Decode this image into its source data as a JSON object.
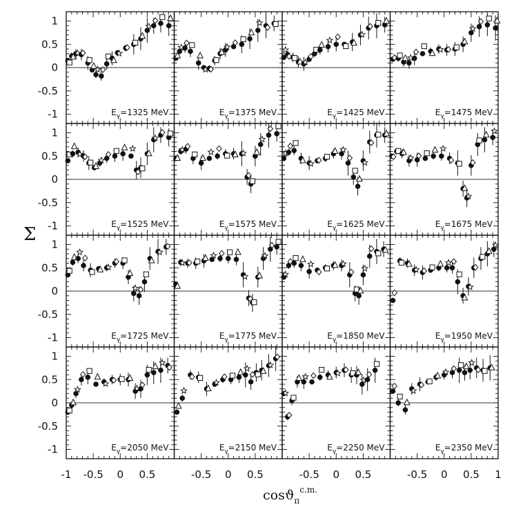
{
  "chart_data": {
    "type": "scatter",
    "ylabel": "Σ",
    "xlabel": "cosϑ",
    "xlabel_sub": "π",
    "xlabel_sup": "c.m.",
    "xlim": [
      -1,
      1
    ],
    "ylim": [
      -1.2,
      1.2
    ],
    "x_ticks": [
      "-1",
      "-0.5",
      "0",
      "0.5",
      "1"
    ],
    "y_ticks": [
      "1",
      "0.5",
      "0",
      "-0.5",
      "-1"
    ],
    "grid": false,
    "layout": "4x4 panel grid",
    "marker_styles": [
      "filled circle",
      "open square",
      "open triangle",
      "open star",
      "open diamond"
    ],
    "panels": [
      {
        "label": "E",
        "label_sub": "γ",
        "energy": "=1325 MeV",
        "points": [
          [
            -0.97,
            0.15
          ],
          [
            -0.9,
            0.25
          ],
          [
            -0.82,
            0.3
          ],
          [
            -0.72,
            0.28
          ],
          [
            -0.6,
            0.1
          ],
          [
            -0.52,
            -0.05
          ],
          [
            -0.45,
            -0.15
          ],
          [
            -0.35,
            -0.18
          ],
          [
            -0.25,
            0.08
          ],
          [
            -0.15,
            0.2
          ],
          [
            -0.05,
            0.32
          ],
          [
            0.1,
            0.42
          ],
          [
            0.25,
            0.5
          ],
          [
            0.38,
            0.62
          ],
          [
            0.5,
            0.8
          ],
          [
            0.62,
            0.9
          ],
          [
            0.75,
            0.95
          ],
          [
            0.9,
            0.9
          ]
        ]
      },
      {
        "label": "E",
        "label_sub": "γ",
        "energy": "=1375 MeV",
        "points": [
          [
            -0.97,
            0.2
          ],
          [
            -0.9,
            0.35
          ],
          [
            -0.8,
            0.42
          ],
          [
            -0.7,
            0.35
          ],
          [
            -0.55,
            0.1
          ],
          [
            -0.45,
            0.0
          ],
          [
            -0.35,
            -0.02
          ],
          [
            -0.25,
            0.15
          ],
          [
            -0.15,
            0.3
          ],
          [
            -0.05,
            0.38
          ],
          [
            0.1,
            0.45
          ],
          [
            0.25,
            0.5
          ],
          [
            0.4,
            0.62
          ],
          [
            0.55,
            0.8
          ],
          [
            0.7,
            0.9
          ],
          [
            0.85,
            0.95
          ]
        ]
      },
      {
        "label": "E",
        "label_sub": "γ",
        "energy": "=1425 MeV",
        "points": [
          [
            -0.97,
            0.22
          ],
          [
            -0.9,
            0.28
          ],
          [
            -0.8,
            0.22
          ],
          [
            -0.7,
            0.12
          ],
          [
            -0.6,
            0.08
          ],
          [
            -0.5,
            0.18
          ],
          [
            -0.4,
            0.3
          ],
          [
            -0.3,
            0.38
          ],
          [
            -0.15,
            0.45
          ],
          [
            0.0,
            0.5
          ],
          [
            0.15,
            0.5
          ],
          [
            0.3,
            0.55
          ],
          [
            0.45,
            0.7
          ],
          [
            0.6,
            0.85
          ],
          [
            0.75,
            0.9
          ],
          [
            0.9,
            0.92
          ]
        ]
      },
      {
        "label": "E",
        "label_sub": "γ",
        "energy": "=1475 MeV",
        "points": [
          [
            -0.95,
            0.18
          ],
          [
            -0.85,
            0.2
          ],
          [
            -0.75,
            0.12
          ],
          [
            -0.65,
            0.1
          ],
          [
            -0.55,
            0.2
          ],
          [
            -0.4,
            0.3
          ],
          [
            -0.25,
            0.35
          ],
          [
            -0.1,
            0.4
          ],
          [
            0.05,
            0.38
          ],
          [
            0.2,
            0.4
          ],
          [
            0.35,
            0.5
          ],
          [
            0.5,
            0.75
          ],
          [
            0.65,
            0.88
          ],
          [
            0.8,
            0.92
          ],
          [
            0.95,
            0.85
          ]
        ]
      },
      {
        "label": "E",
        "label_sub": "γ",
        "energy": "=1525 MeV",
        "points": [
          [
            -0.97,
            0.4
          ],
          [
            -0.88,
            0.55
          ],
          [
            -0.78,
            0.58
          ],
          [
            -0.68,
            0.5
          ],
          [
            -0.58,
            0.35
          ],
          [
            -0.48,
            0.25
          ],
          [
            -0.38,
            0.35
          ],
          [
            -0.25,
            0.45
          ],
          [
            -0.1,
            0.5
          ],
          [
            0.05,
            0.55
          ],
          [
            0.2,
            0.5
          ],
          [
            0.3,
            0.2
          ],
          [
            0.38,
            0.25
          ],
          [
            0.5,
            0.55
          ],
          [
            0.62,
            0.85
          ],
          [
            0.75,
            0.95
          ],
          [
            0.9,
            0.9
          ]
        ]
      },
      {
        "label": "E",
        "label_sub": "γ",
        "energy": "=1575 MeV",
        "points": [
          [
            -0.97,
            0.45
          ],
          [
            -0.88,
            0.6
          ],
          [
            -0.78,
            0.65
          ],
          [
            -0.65,
            0.45
          ],
          [
            -0.5,
            0.35
          ],
          [
            -0.35,
            0.45
          ],
          [
            -0.2,
            0.5
          ],
          [
            -0.05,
            0.55
          ],
          [
            0.1,
            0.55
          ],
          [
            0.25,
            0.55
          ],
          [
            0.35,
            0.05
          ],
          [
            0.42,
            -0.1
          ],
          [
            0.5,
            0.5
          ],
          [
            0.6,
            0.75
          ],
          [
            0.75,
            0.95
          ],
          [
            0.9,
            0.98
          ]
        ]
      },
      {
        "label": "E",
        "label_sub": "γ",
        "energy": "=1625 MeV",
        "points": [
          [
            -0.97,
            0.45
          ],
          [
            -0.88,
            0.58
          ],
          [
            -0.78,
            0.62
          ],
          [
            -0.65,
            0.45
          ],
          [
            -0.5,
            0.35
          ],
          [
            -0.35,
            0.4
          ],
          [
            -0.2,
            0.45
          ],
          [
            -0.05,
            0.55
          ],
          [
            0.1,
            0.55
          ],
          [
            0.22,
            0.35
          ],
          [
            0.32,
            0.05
          ],
          [
            0.4,
            -0.15
          ],
          [
            0.5,
            0.4
          ],
          [
            0.62,
            0.8
          ],
          [
            0.75,
            0.95
          ],
          [
            0.9,
            0.95
          ]
        ]
      },
      {
        "label": "E",
        "label_sub": "γ",
        "energy": "=1675 MeV",
        "points": [
          [
            -0.97,
            0.5
          ],
          [
            -0.88,
            0.6
          ],
          [
            -0.78,
            0.55
          ],
          [
            -0.65,
            0.4
          ],
          [
            -0.5,
            0.42
          ],
          [
            -0.35,
            0.45
          ],
          [
            -0.2,
            0.5
          ],
          [
            -0.05,
            0.5
          ],
          [
            0.1,
            0.45
          ],
          [
            0.25,
            0.35
          ],
          [
            0.35,
            -0.2
          ],
          [
            0.42,
            -0.4
          ],
          [
            0.5,
            0.3
          ],
          [
            0.62,
            0.75
          ],
          [
            0.75,
            0.85
          ],
          [
            0.9,
            0.9
          ]
        ]
      },
      {
        "label": "E",
        "label_sub": "γ",
        "energy": "=1725 MeV",
        "points": [
          [
            -0.97,
            0.35
          ],
          [
            -0.88,
            0.62
          ],
          [
            -0.78,
            0.7
          ],
          [
            -0.68,
            0.55
          ],
          [
            -0.55,
            0.45
          ],
          [
            -0.4,
            0.48
          ],
          [
            -0.25,
            0.5
          ],
          [
            -0.1,
            0.6
          ],
          [
            0.05,
            0.6
          ],
          [
            0.15,
            0.3
          ],
          [
            0.25,
            -0.05
          ],
          [
            0.35,
            -0.1
          ],
          [
            0.45,
            0.2
          ],
          [
            0.55,
            0.7
          ],
          [
            0.7,
            0.85
          ],
          [
            0.85,
            0.95
          ]
        ]
      },
      {
        "label": "E",
        "label_sub": "γ",
        "energy": "=1775 MeV",
        "points": [
          [
            -0.97,
            0.15
          ],
          [
            -0.88,
            0.62
          ],
          [
            -0.75,
            0.6
          ],
          [
            -0.6,
            0.6
          ],
          [
            -0.45,
            0.65
          ],
          [
            -0.3,
            0.68
          ],
          [
            -0.15,
            0.7
          ],
          [
            0.0,
            0.7
          ],
          [
            0.15,
            0.68
          ],
          [
            0.28,
            0.35
          ],
          [
            0.38,
            -0.15
          ],
          [
            0.45,
            -0.25
          ],
          [
            0.55,
            0.3
          ],
          [
            0.65,
            0.7
          ],
          [
            0.78,
            0.9
          ],
          [
            0.9,
            0.95
          ]
        ]
      },
      {
        "label": "E",
        "label_sub": "γ",
        "energy": "=1850 MeV",
        "points": [
          [
            -0.97,
            0.3
          ],
          [
            -0.88,
            0.55
          ],
          [
            -0.78,
            0.6
          ],
          [
            -0.65,
            0.55
          ],
          [
            -0.5,
            0.42
          ],
          [
            -0.35,
            0.45
          ],
          [
            -0.2,
            0.5
          ],
          [
            -0.05,
            0.55
          ],
          [
            0.1,
            0.55
          ],
          [
            0.25,
            0.35
          ],
          [
            0.35,
            -0.05
          ],
          [
            0.42,
            -0.1
          ],
          [
            0.5,
            0.35
          ],
          [
            0.62,
            0.75
          ],
          [
            0.75,
            0.85
          ],
          [
            0.88,
            0.9
          ]
        ]
      },
      {
        "label": "E",
        "label_sub": "γ",
        "energy": "=1950 MeV",
        "points": [
          [
            -0.95,
            -0.2
          ],
          [
            -0.82,
            0.65
          ],
          [
            -0.68,
            0.6
          ],
          [
            -0.55,
            0.45
          ],
          [
            -0.4,
            0.4
          ],
          [
            -0.25,
            0.45
          ],
          [
            -0.1,
            0.5
          ],
          [
            0.05,
            0.5
          ],
          [
            0.15,
            0.5
          ],
          [
            0.25,
            0.2
          ],
          [
            0.35,
            -0.1
          ],
          [
            0.45,
            0.1
          ],
          [
            0.55,
            0.5
          ],
          [
            0.68,
            0.7
          ],
          [
            0.8,
            0.8
          ],
          [
            0.92,
            0.9
          ]
        ]
      },
      {
        "label": "E",
        "label_sub": "γ",
        "energy": "=2050 MeV",
        "points": [
          [
            -0.97,
            -0.2
          ],
          [
            -0.9,
            -0.05
          ],
          [
            -0.82,
            0.2
          ],
          [
            -0.72,
            0.5
          ],
          [
            -0.6,
            0.55
          ],
          [
            -0.45,
            0.4
          ],
          [
            -0.3,
            0.45
          ],
          [
            -0.15,
            0.5
          ],
          [
            0.0,
            0.5
          ],
          [
            0.15,
            0.5
          ],
          [
            0.28,
            0.25
          ],
          [
            0.38,
            0.3
          ],
          [
            0.5,
            0.6
          ],
          [
            0.62,
            0.65
          ],
          [
            0.75,
            0.7
          ],
          [
            0.88,
            0.8
          ]
        ]
      },
      {
        "label": "E",
        "label_sub": "γ",
        "energy": "=2150 MeV",
        "points": [
          [
            -0.95,
            -0.2
          ],
          [
            -0.85,
            0.1
          ],
          [
            -0.7,
            0.6
          ],
          [
            -0.55,
            0.55
          ],
          [
            -0.4,
            0.3
          ],
          [
            -0.25,
            0.4
          ],
          [
            -0.1,
            0.5
          ],
          [
            0.05,
            0.5
          ],
          [
            0.2,
            0.55
          ],
          [
            0.32,
            0.6
          ],
          [
            0.42,
            0.45
          ],
          [
            0.52,
            0.65
          ],
          [
            0.62,
            0.7
          ],
          [
            0.75,
            0.8
          ],
          [
            0.88,
            0.95
          ]
        ]
      },
      {
        "label": "E",
        "label_sub": "γ",
        "energy": "=2250 MeV",
        "points": [
          [
            -0.97,
            0.2
          ],
          [
            -0.9,
            -0.3
          ],
          [
            -0.82,
            0.05
          ],
          [
            -0.72,
            0.45
          ],
          [
            -0.6,
            0.45
          ],
          [
            -0.45,
            0.45
          ],
          [
            -0.3,
            0.55
          ],
          [
            -0.15,
            0.6
          ],
          [
            0.0,
            0.65
          ],
          [
            0.15,
            0.7
          ],
          [
            0.28,
            0.6
          ],
          [
            0.38,
            0.6
          ],
          [
            0.48,
            0.4
          ],
          [
            0.58,
            0.5
          ],
          [
            0.72,
            0.7
          ]
        ]
      },
      {
        "label": "E",
        "label_sub": "γ",
        "energy": "=2350 MeV",
        "points": [
          [
            -0.95,
            0.25
          ],
          [
            -0.85,
            0.0
          ],
          [
            -0.72,
            -0.15
          ],
          [
            -0.6,
            0.3
          ],
          [
            -0.45,
            0.4
          ],
          [
            -0.3,
            0.45
          ],
          [
            -0.15,
            0.55
          ],
          [
            0.0,
            0.6
          ],
          [
            0.15,
            0.65
          ],
          [
            0.28,
            0.7
          ],
          [
            0.38,
            0.65
          ],
          [
            0.48,
            0.7
          ],
          [
            0.6,
            0.75
          ],
          [
            0.72,
            0.7
          ],
          [
            0.85,
            0.75
          ]
        ]
      }
    ]
  }
}
